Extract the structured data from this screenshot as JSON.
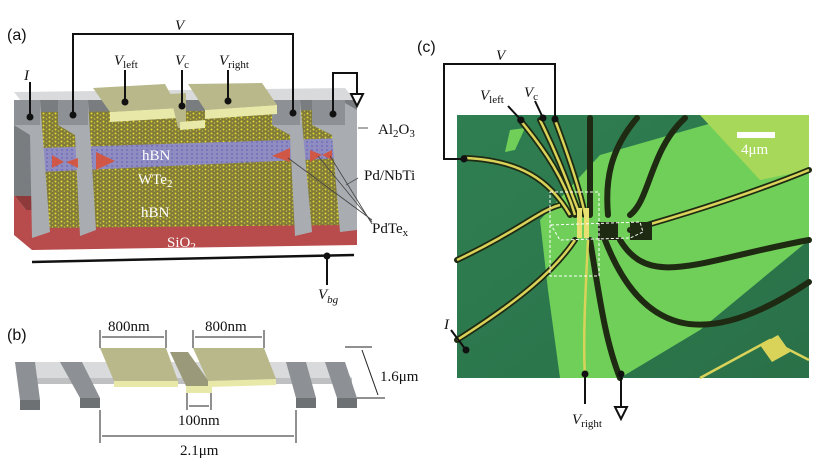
{
  "panels": {
    "a": "(a)",
    "b": "(b)",
    "c": "(c)"
  },
  "panel_a": {
    "V": "V",
    "I": "I",
    "V_left": {
      "main": "V",
      "sub": "left"
    },
    "V_c": {
      "main": "V",
      "sub": "c"
    },
    "V_right": {
      "main": "V",
      "sub": "right"
    },
    "V_bg": {
      "main": "V",
      "sub": "bg"
    },
    "layers": {
      "hbn_top": "hBN",
      "wte2": {
        "main": "WTe",
        "sub": "2"
      },
      "hbn_bottom": "hBN",
      "sio2": {
        "main": "SiO",
        "sub": "2"
      }
    },
    "al2o3": {
      "a": "Al",
      "s1": "2",
      "b": "O",
      "s2": "3"
    },
    "contact_material": "Pd/NbTi",
    "pdtex": {
      "main": "PdTe",
      "sub": "x"
    },
    "colors": {
      "sio2": "#b84c4c",
      "contact": "#a9adb1",
      "electrode": "#b8b88a",
      "hbn": "#c8b830",
      "wte2": "#8a86c8",
      "pdtex": "#d9533a"
    }
  },
  "panel_b": {
    "dim_left": "800nm",
    "dim_right": "800nm",
    "dim_gap": "100nm",
    "dim_total": "2.1μm",
    "dim_depth": "1.6μm"
  },
  "panel_c": {
    "V": "V",
    "I": "I",
    "V_left": {
      "main": "V",
      "sub": "left"
    },
    "V_c": {
      "main": "V",
      "sub": "c"
    },
    "V_right": {
      "main": "V",
      "sub": "right"
    },
    "scale_bar": "4μm",
    "colors": {
      "substrate": "#2e7d4f",
      "flake": "#7fd35a",
      "lead": "#d9d35a"
    }
  }
}
